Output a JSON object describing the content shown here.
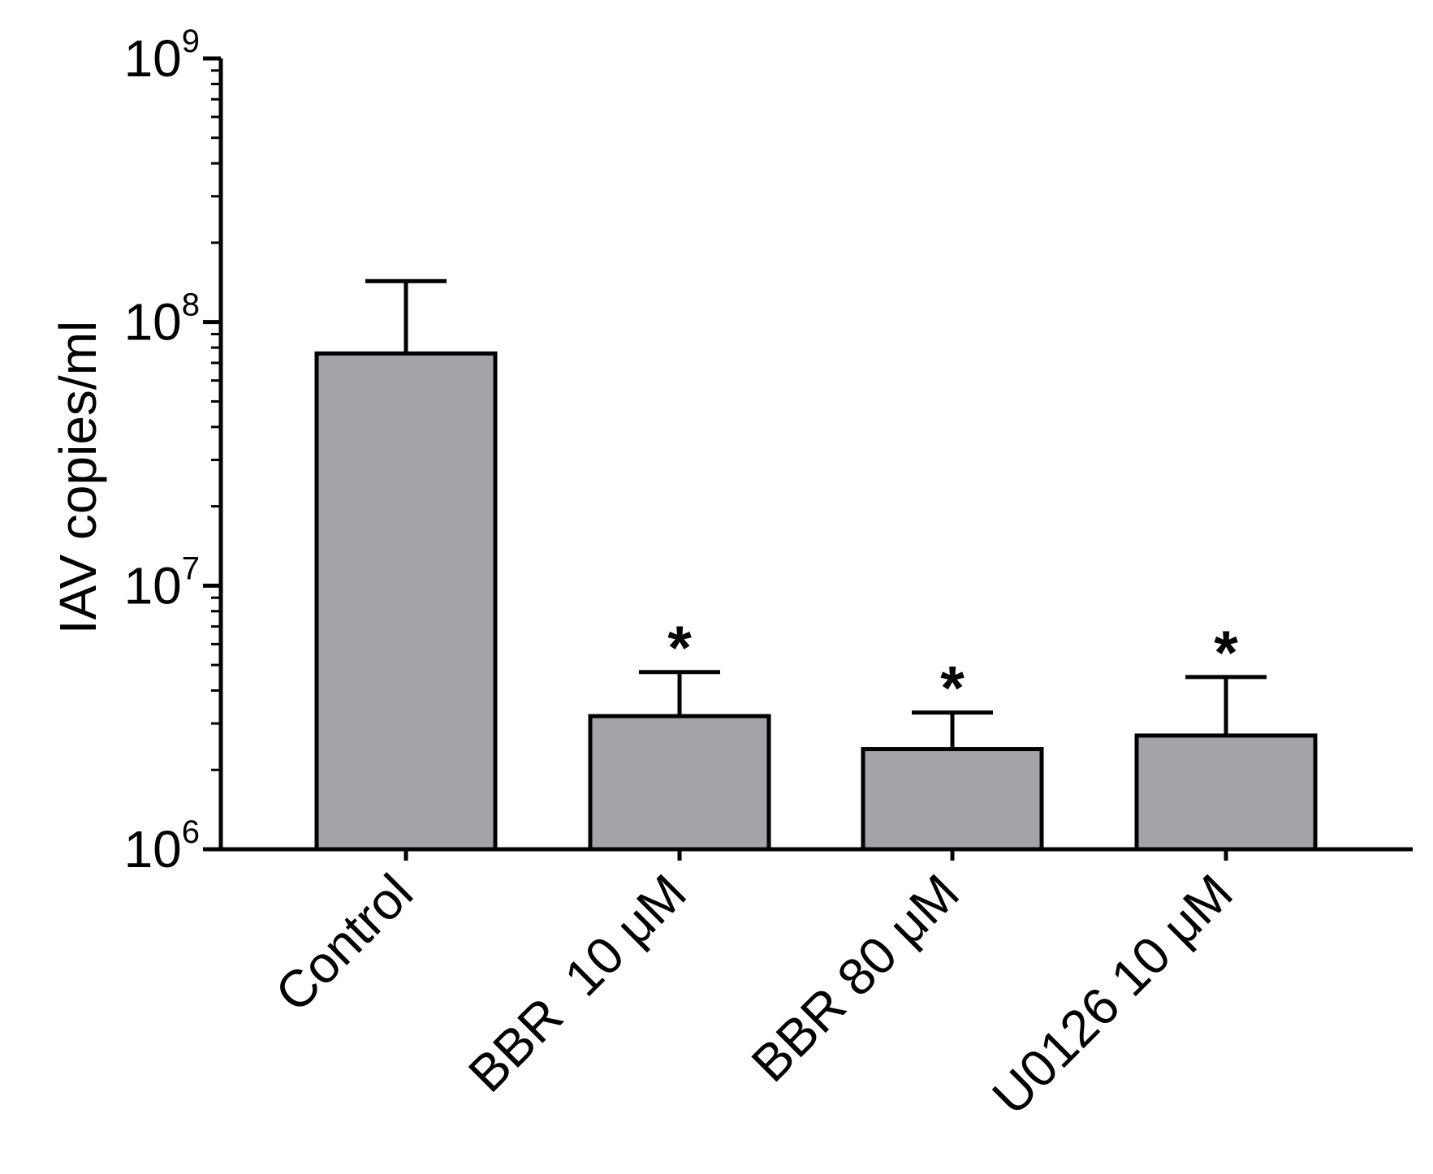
{
  "chart_data": {
    "type": "bar",
    "title": "",
    "xlabel": "",
    "ylabel": "IAV copies/ml",
    "yscale": "log",
    "ylim": [
      1000000,
      1000000000
    ],
    "ytick_labels": [
      {
        "base": "10",
        "exp": "6",
        "value": 1000000
      },
      {
        "base": "10",
        "exp": "7",
        "value": 10000000
      },
      {
        "base": "10",
        "exp": "8",
        "value": 100000000
      },
      {
        "base": "10",
        "exp": "9",
        "value": 1000000000
      }
    ],
    "categories": [
      "Control",
      "BBR  10 μM",
      "BBR 80 μM",
      "U0126 10 μM"
    ],
    "values": [
      76000000,
      3200000,
      2400000,
      2700000
    ],
    "error_upper": [
      143000000,
      4700000,
      3300000,
      4500000
    ],
    "annotations": [
      "",
      "*",
      "*",
      "*"
    ],
    "grid": false,
    "legend": "none",
    "colors": {
      "bar_fill": "#a3a3a8",
      "bar_stroke": "#000000",
      "axis": "#000000"
    }
  }
}
